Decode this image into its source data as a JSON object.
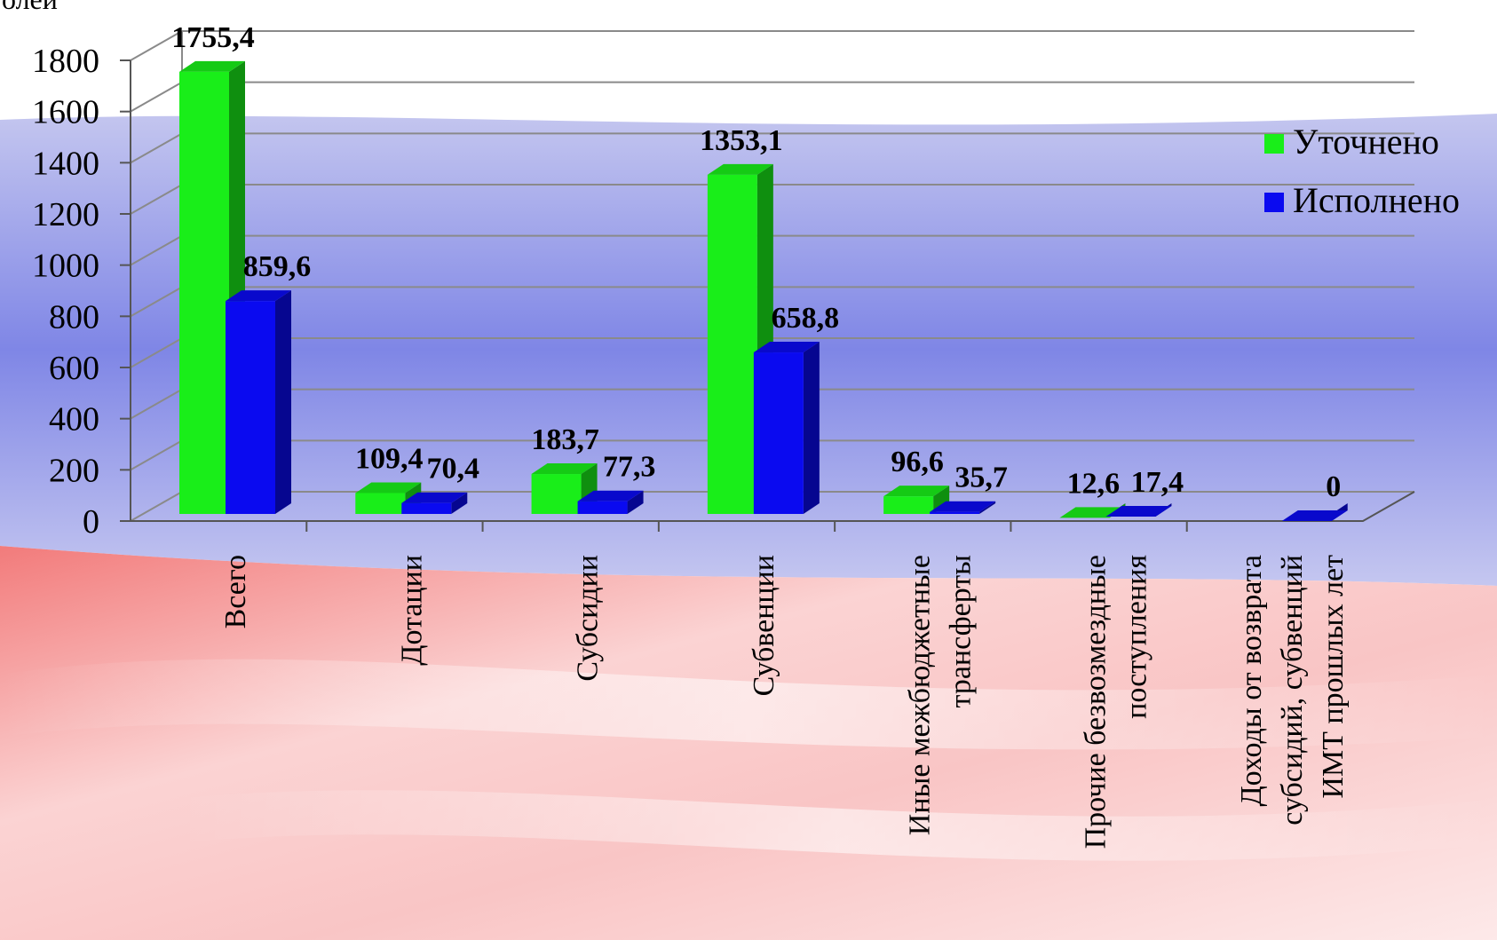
{
  "chart_data": {
    "type": "bar",
    "unit_label": "олей",
    "categories": [
      [
        "Всего"
      ],
      [
        "Дотации"
      ],
      [
        "Субсидии"
      ],
      [
        "Субвенции"
      ],
      [
        "Иные межбюджетные",
        "трансферты"
      ],
      [
        "Прочие безвозмездные",
        "поступления"
      ],
      [
        "Доходы от возврата",
        "субсидий, субвенций",
        "ИМТ прошлых лет"
      ]
    ],
    "series": [
      {
        "name": "Уточнено",
        "color": "#19ee19",
        "values": [
          1755.4,
          109.4,
          183.7,
          1353.1,
          96.6,
          12.6,
          null
        ],
        "labels": [
          "1755,4",
          "109,4",
          "183,7",
          "1353,1",
          "96,6",
          "12,6",
          ""
        ]
      },
      {
        "name": "Исполнено",
        "color": "#0a0af0",
        "values": [
          859.6,
          70.4,
          77.3,
          658.8,
          35.7,
          17.4,
          0
        ],
        "labels": [
          "859,6",
          "70,4",
          "77,3",
          "658,8",
          "35,7",
          "17,4",
          "0"
        ]
      }
    ],
    "yticks": [
      "0",
      "200",
      "400",
      "600",
      "800",
      "1000",
      "1200",
      "1400",
      "1600",
      "1800"
    ],
    "ylim": [
      0,
      1800
    ],
    "grid": true,
    "legend": "right",
    "three_d": true
  }
}
